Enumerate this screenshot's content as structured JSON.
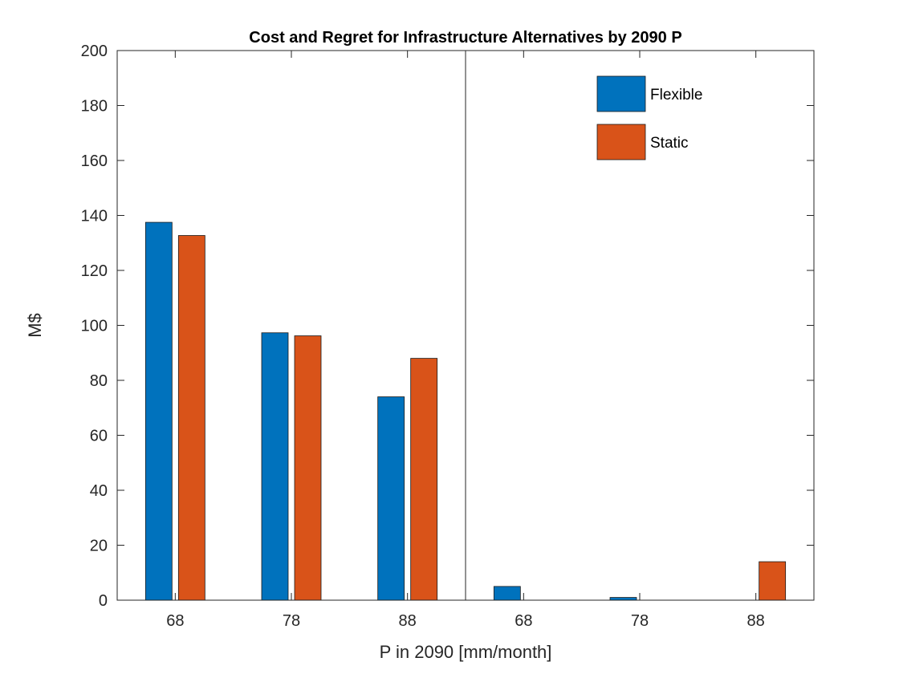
{
  "chart_data": {
    "type": "bar",
    "title": "Cost and Regret for Infrastructure Alternatives by 2090 P",
    "xlabel": "P in 2090 [mm/month]",
    "ylabel": "M$",
    "ylim": [
      0,
      200
    ],
    "yticks": [
      "0",
      "20",
      "40",
      "60",
      "80",
      "100",
      "120",
      "140",
      "160",
      "180",
      "200"
    ],
    "categories": [
      "68",
      "78",
      "88",
      "68",
      "78",
      "88"
    ],
    "divider_after_category": 3,
    "grid": false,
    "legend_position": "top-right",
    "series": [
      {
        "name": "Flexible",
        "color": "#0072BD",
        "values": [
          137.5,
          97.3,
          74,
          5,
          1,
          0
        ]
      },
      {
        "name": "Static",
        "color": "#D95319",
        "values": [
          132.7,
          96.2,
          88,
          0,
          0,
          14
        ]
      }
    ]
  }
}
